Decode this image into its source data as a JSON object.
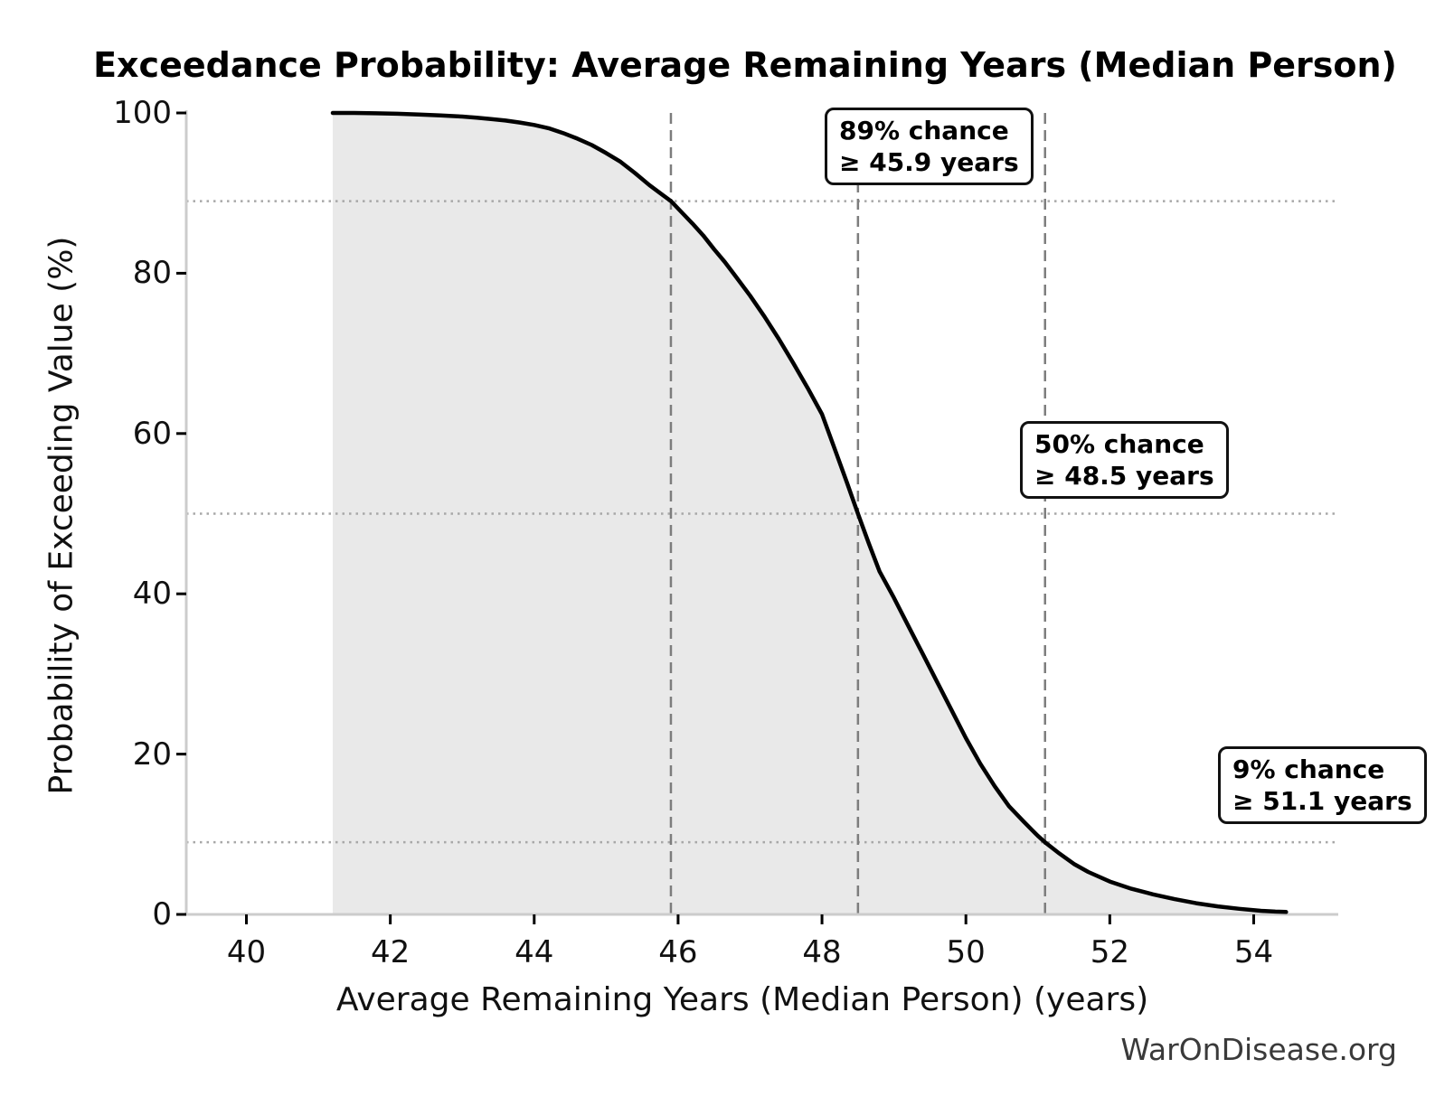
{
  "watermark": "WarOnDisease.org",
  "chart_data": {
    "type": "area",
    "title": "Exceedance Probability: Average Remaining Years (Median Person)",
    "xlabel": "Average Remaining Years (Median Person) (years)",
    "ylabel": "Probability of Exceeding Value (%)",
    "xlim": [
      39.2,
      55.2
    ],
    "ylim": [
      0,
      100
    ],
    "x_ticks": [
      40,
      42,
      44,
      46,
      48,
      50,
      52,
      54
    ],
    "y_ticks": [
      0,
      20,
      40,
      60,
      80,
      100
    ],
    "legend": "none",
    "grid": "off",
    "series": [
      {
        "name": "exceedance-curve",
        "x": [
          41.2,
          41.5,
          41.8,
          42.1,
          42.4,
          42.7,
          43.0,
          43.2,
          43.4,
          43.6,
          43.8,
          44.0,
          44.2,
          44.4,
          44.6,
          44.8,
          45.0,
          45.2,
          45.4,
          45.6,
          45.75,
          45.9,
          46.05,
          46.2,
          46.35,
          46.5,
          46.65,
          46.8,
          47.0,
          47.2,
          47.4,
          47.6,
          47.8,
          48.0,
          48.2,
          48.35,
          48.5,
          48.65,
          48.8,
          49.0,
          49.2,
          49.4,
          49.6,
          49.8,
          50.0,
          50.2,
          50.4,
          50.6,
          50.8,
          51.0,
          51.1,
          51.3,
          51.5,
          51.7,
          52.0,
          52.3,
          52.6,
          52.9,
          53.2,
          53.5,
          53.8,
          54.1,
          54.3,
          54.45
        ],
        "y": [
          100,
          100,
          99.95,
          99.9,
          99.8,
          99.7,
          99.55,
          99.4,
          99.25,
          99.05,
          98.8,
          98.5,
          98.1,
          97.5,
          96.8,
          96.0,
          95.0,
          93.9,
          92.5,
          91.0,
          90.0,
          89.0,
          87.6,
          86.2,
          84.7,
          83.0,
          81.4,
          79.6,
          77.2,
          74.6,
          71.8,
          68.8,
          65.7,
          62.4,
          57.5,
          53.8,
          50.0,
          46.3,
          42.8,
          39.5,
          36.0,
          32.5,
          29.0,
          25.5,
          22.0,
          18.8,
          16.0,
          13.5,
          11.6,
          9.8,
          9.0,
          7.6,
          6.3,
          5.3,
          4.1,
          3.2,
          2.5,
          1.9,
          1.4,
          1.0,
          0.7,
          0.45,
          0.35,
          0.3
        ]
      }
    ],
    "reference_lines": {
      "vertical_dashed_x": [
        45.9,
        48.5,
        51.1
      ],
      "horizontal_dotted_y": [
        89,
        50,
        9
      ]
    },
    "annotations": [
      {
        "line1": "89% chance",
        "line2": "≥ 45.9 years",
        "x": 45.9,
        "probability": 89
      },
      {
        "line1": "50% chance",
        "line2": "≥ 48.5 years",
        "x": 48.5,
        "probability": 50
      },
      {
        "line1": "9% chance",
        "line2": "≥ 51.1 years",
        "x": 51.1,
        "probability": 9
      }
    ],
    "colors": {
      "curve": "#000000",
      "fill": "#e9e9e9",
      "dashed_line": "#7d7d7d",
      "dotted_line": "#a8a8a8",
      "spine": "#cccccc",
      "tick": "#000000",
      "watermark_text": "#3a3a3a"
    }
  }
}
